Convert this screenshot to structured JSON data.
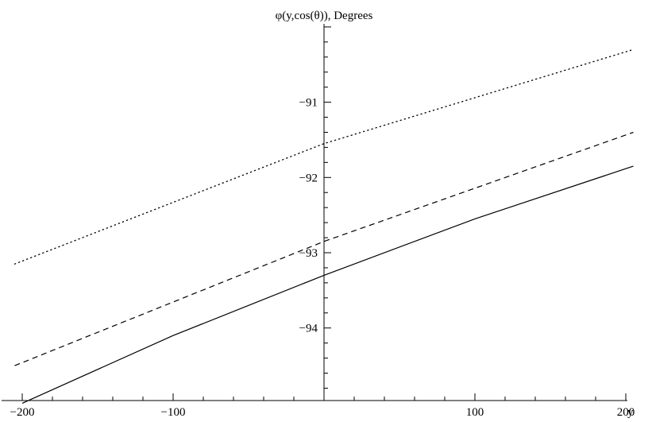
{
  "chart_data": {
    "type": "line",
    "title": "",
    "ylabel": "φ(y,cos(θ)), Degrees",
    "xlabel": "y",
    "xlim": [
      -205,
      205
    ],
    "ylim": [
      -95.0,
      -90.0
    ],
    "grid": false,
    "x_ticks": [
      -200,
      -100,
      100,
      200
    ],
    "x_tick_labels": [
      "−200",
      "−100",
      "100",
      "200"
    ],
    "y_ticks": [
      -91,
      -92,
      -93,
      -94
    ],
    "y_tick_labels": [
      "−91",
      "−92",
      "−93",
      "−94"
    ],
    "series": [
      {
        "style": "dotted",
        "x": [
          -205,
          0,
          205
        ],
        "y": [
          -93.15,
          -91.55,
          -90.3
        ]
      },
      {
        "style": "dashed",
        "x": [
          -205,
          0,
          205
        ],
        "y": [
          -94.5,
          -92.85,
          -91.4
        ]
      },
      {
        "style": "solid",
        "x": [
          -200,
          -100,
          0,
          100,
          205
        ],
        "y": [
          -95.0,
          -94.1,
          -93.3,
          -92.55,
          -91.85
        ]
      }
    ]
  }
}
